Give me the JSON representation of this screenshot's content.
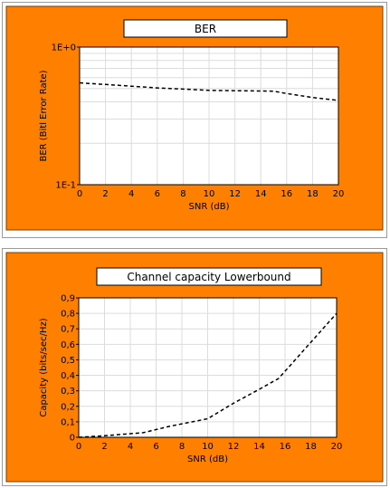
{
  "colors": {
    "panel_background": "#ff8000",
    "plot_background": "#ffffff",
    "grid": "#dcdcdc",
    "series_line": "#000000"
  },
  "chart_data": [
    {
      "type": "line",
      "title": "BER",
      "xlabel": "SNR (dB)",
      "ylabel": "BER (Bitl Error Rate)",
      "x_ticks": [
        "0",
        "2",
        "4",
        "6",
        "8",
        "10",
        "12",
        "14",
        "16",
        "18",
        "20"
      ],
      "y_ticks": [
        {
          "value": 0.1,
          "label": "1E-1"
        },
        {
          "value": 1,
          "label": "1E+0"
        }
      ],
      "xlim": [
        0,
        20
      ],
      "ylim": [
        0.1,
        1
      ],
      "y_scale": "log",
      "grid": true,
      "line_style": "dashed",
      "series": [
        {
          "x": [
            0,
            2,
            4,
            6,
            8,
            10,
            12,
            14,
            15,
            16,
            18,
            20
          ],
          "y": [
            0.55,
            0.535,
            0.52,
            0.505,
            0.495,
            0.485,
            0.482,
            0.48,
            0.478,
            0.46,
            0.43,
            0.41
          ]
        }
      ]
    },
    {
      "type": "line",
      "title": "Channel capacity Lowerbound",
      "xlabel": "SNR (dB)",
      "ylabel": "Capacity (bits/sec/Hz)",
      "x_ticks": [
        "0",
        "2",
        "4",
        "6",
        "8",
        "10",
        "12",
        "14",
        "16",
        "18",
        "20"
      ],
      "y_ticks": [
        {
          "value": 0,
          "label": "0"
        },
        {
          "value": 0.1,
          "label": "0,1"
        },
        {
          "value": 0.2,
          "label": "0,2"
        },
        {
          "value": 0.3,
          "label": "0,3"
        },
        {
          "value": 0.4,
          "label": "0,4"
        },
        {
          "value": 0.5,
          "label": "0,5"
        },
        {
          "value": 0.6,
          "label": "0,6"
        },
        {
          "value": 0.7,
          "label": "0,7"
        },
        {
          "value": 0.8,
          "label": "0,8"
        },
        {
          "value": 0.9,
          "label": "0,9"
        }
      ],
      "xlim": [
        0,
        20
      ],
      "ylim": [
        0,
        0.9
      ],
      "y_scale": "linear",
      "grid": true,
      "line_style": "dashed",
      "series": [
        {
          "x": [
            0,
            2,
            5,
            7,
            10,
            12,
            14,
            15.5,
            17,
            18.5,
            20
          ],
          "y": [
            0,
            0.01,
            0.03,
            0.07,
            0.12,
            0.22,
            0.31,
            0.38,
            0.52,
            0.66,
            0.8
          ]
        }
      ]
    }
  ]
}
